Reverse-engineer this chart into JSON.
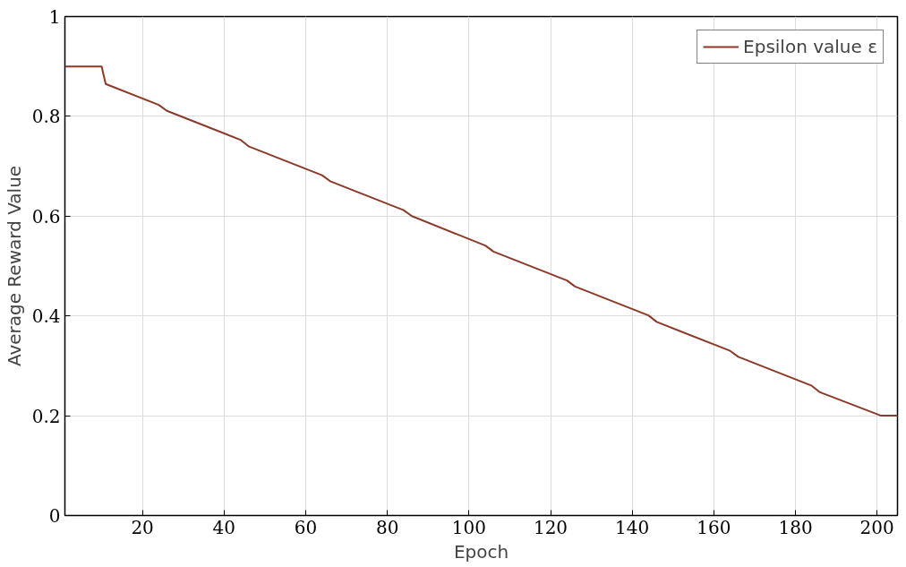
{
  "chart_data": {
    "type": "line",
    "xlabel": "Epoch",
    "ylabel": "Average Reward Value",
    "x": [
      1,
      10,
      11,
      24,
      26,
      44,
      46,
      64,
      66,
      84,
      86,
      104,
      106,
      124,
      126,
      144,
      146,
      164,
      166,
      184,
      186,
      201,
      205
    ],
    "series": [
      {
        "name": "Epsilon value ε",
        "color": "#8b3a2a",
        "values": [
          0.9,
          0.9,
          0.865,
          0.823,
          0.811,
          0.753,
          0.74,
          0.682,
          0.67,
          0.612,
          0.6,
          0.541,
          0.529,
          0.471,
          0.459,
          0.401,
          0.388,
          0.33,
          0.318,
          0.26,
          0.247,
          0.2,
          0.2
        ]
      }
    ],
    "xlim": [
      1,
      205
    ],
    "ylim": [
      0,
      1
    ],
    "xticks": [
      20,
      40,
      60,
      80,
      100,
      120,
      140,
      160,
      180,
      200
    ],
    "yticks": [
      0,
      0.2,
      0.4,
      0.6,
      0.8,
      1
    ],
    "grid": true,
    "legend": "top right",
    "marker": "none",
    "line_style": "solid"
  }
}
